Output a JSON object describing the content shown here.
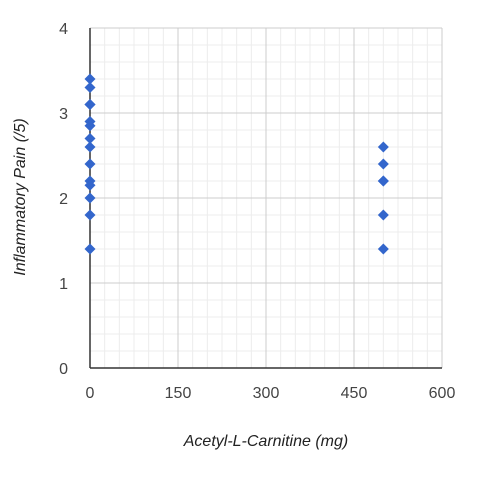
{
  "chart_data": {
    "type": "scatter",
    "title": "",
    "xlabel": "Acetyl-L-Carnitine (mg)",
    "ylabel": "Inflammatory Pain (/5)",
    "xlim": [
      0,
      600
    ],
    "ylim": [
      0,
      4
    ],
    "x_ticks": [
      "0",
      "150",
      "300",
      "450",
      "600"
    ],
    "y_ticks": [
      "0",
      "1",
      "2",
      "3",
      "4"
    ],
    "grid": true,
    "legend": "none",
    "marker": "diamond",
    "marker_color": "#3366cc",
    "series": [
      {
        "points": [
          {
            "x": 0,
            "y": 3.4
          },
          {
            "x": 0,
            "y": 3.3
          },
          {
            "x": 0,
            "y": 3.1
          },
          {
            "x": 0,
            "y": 3.1
          },
          {
            "x": 0,
            "y": 2.9
          },
          {
            "x": 0,
            "y": 2.85
          },
          {
            "x": 0,
            "y": 2.7
          },
          {
            "x": 0,
            "y": 2.6
          },
          {
            "x": 0,
            "y": 2.4
          },
          {
            "x": 0,
            "y": 2.2
          },
          {
            "x": 0,
            "y": 2.15
          },
          {
            "x": 0,
            "y": 2.0
          },
          {
            "x": 0,
            "y": 1.8
          },
          {
            "x": 0,
            "y": 1.4
          },
          {
            "x": 500,
            "y": 2.6
          },
          {
            "x": 500,
            "y": 2.4
          },
          {
            "x": 500,
            "y": 2.2
          },
          {
            "x": 500,
            "y": 2.2
          },
          {
            "x": 500,
            "y": 1.8
          },
          {
            "x": 500,
            "y": 1.4
          }
        ]
      }
    ]
  }
}
